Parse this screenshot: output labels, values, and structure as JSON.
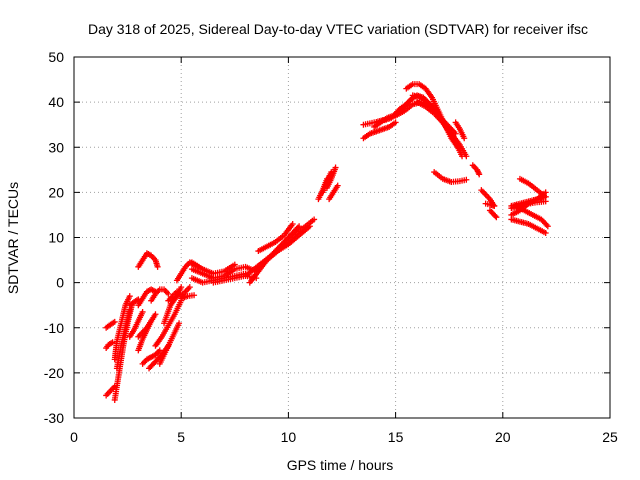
{
  "chart_data": {
    "type": "scatter",
    "title": "Day 318 of 2025, Sidereal Day-to-day VTEC variation (SDTVAR) for receiver ifsc",
    "xlabel": "GPS time / hours",
    "ylabel": "SDTVAR / TECUs",
    "xlim": [
      0,
      25
    ],
    "ylim": [
      -30,
      50
    ],
    "xticks": [
      "0",
      "5",
      "10",
      "15",
      "20",
      "25"
    ],
    "yticks": [
      "-30",
      "-20",
      "-10",
      "0",
      "10",
      "20",
      "30",
      "40",
      "50"
    ],
    "grid": true,
    "marker": "+",
    "series": [
      {
        "name": "SDTVAR",
        "color": "#ff0000",
        "segments": [
          {
            "x": [
              1.5,
              1.7,
              1.9
            ],
            "y": [
              -25,
              -24,
              -23
            ]
          },
          {
            "x": [
              1.5,
              1.6,
              1.8
            ],
            "y": [
              -14.5,
              -13.8,
              -13.2
            ]
          },
          {
            "x": [
              1.5,
              1.7,
              1.9
            ],
            "y": [
              -10,
              -9.3,
              -8.7
            ]
          },
          {
            "x": [
              1.9,
              2.1,
              2.3,
              2.5,
              2.7
            ],
            "y": [
              -26,
              -20,
              -14,
              -9,
              -5
            ]
          },
          {
            "x": [
              1.9,
              2.0,
              2.2,
              2.4,
              2.6
            ],
            "y": [
              -17,
              -13,
              -9,
              -5,
              -3
            ]
          },
          {
            "x": [
              2.0,
              2.2,
              2.4,
              2.6
            ],
            "y": [
              -19,
              -14,
              -10,
              -6
            ]
          },
          {
            "x": [
              2.6,
              2.8,
              3.0
            ],
            "y": [
              -5,
              -4.3,
              -3.7
            ]
          },
          {
            "x": [
              2.6,
              2.8,
              3.0,
              3.2
            ],
            "y": [
              -12,
              -10.5,
              -8.5,
              -6.5
            ]
          },
          {
            "x": [
              3.0,
              3.2,
              3.4,
              3.6
            ],
            "y": [
              -15,
              -12.5,
              -10.5,
              -8.5
            ]
          },
          {
            "x": [
              3.0,
              3.2,
              3.4,
              3.6,
              3.8
            ],
            "y": [
              -5,
              -3.5,
              -2,
              -1.5,
              -2
            ]
          },
          {
            "x": [
              3.0,
              3.2,
              3.4,
              3.6,
              3.8
            ],
            "y": [
              -12,
              -11,
              -10,
              -8.5,
              -7
            ]
          },
          {
            "x": [
              3.0,
              3.2,
              3.4,
              3.6,
              3.8,
              3.9
            ],
            "y": [
              3.5,
              5,
              6.5,
              6,
              5,
              3.5
            ]
          },
          {
            "x": [
              3.2,
              3.4,
              3.6,
              3.8,
              4.0
            ],
            "y": [
              -18,
              -17,
              -16.5,
              -16,
              -15
            ]
          },
          {
            "x": [
              3.5,
              3.8,
              4.1,
              4.4
            ],
            "y": [
              -19,
              -17.5,
              -16,
              -14
            ]
          },
          {
            "x": [
              3.6,
              3.8,
              4.0,
              4.2,
              4.4
            ],
            "y": [
              -4,
              -2.5,
              -1.5,
              -1.5,
              -2.5
            ]
          },
          {
            "x": [
              3.8,
              4.1,
              4.4,
              4.7,
              5.0
            ],
            "y": [
              -14,
              -12,
              -9.5,
              -7,
              -4
            ]
          },
          {
            "x": [
              4.0,
              4.3,
              4.6,
              4.9
            ],
            "y": [
              -18,
              -15,
              -12,
              -9
            ]
          },
          {
            "x": [
              4.2,
              4.5,
              4.8,
              5.0
            ],
            "y": [
              -9,
              -5,
              -3,
              -1
            ]
          },
          {
            "x": [
              4.4,
              4.6,
              4.8,
              5.0,
              5.2,
              5.4
            ],
            "y": [
              -4,
              -3,
              -2,
              -3,
              -2,
              -1
            ]
          },
          {
            "x": [
              4.8,
              5.0,
              5.2,
              5.4,
              5.6,
              5.8
            ],
            "y": [
              0.5,
              2,
              3.5,
              4.5,
              4,
              3.5
            ]
          },
          {
            "x": [
              5.0,
              5.3,
              5.6
            ],
            "y": [
              -3.5,
              -3.0,
              -2.8
            ]
          },
          {
            "x": [
              5.5,
              6.0,
              6.5,
              7.0,
              7.5,
              8.0,
              8.5
            ],
            "y": [
              3,
              2,
              1,
              1.5,
              3,
              3.5,
              2.5
            ]
          },
          {
            "x": [
              5.5,
              6.0,
              6.5,
              7.0,
              7.5,
              8.0
            ],
            "y": [
              1,
              0,
              0.5,
              1,
              1.5,
              2
            ]
          },
          {
            "x": [
              5.5,
              6.0,
              6.5,
              7.0,
              7.5
            ],
            "y": [
              4.5,
              3,
              2,
              2.5,
              4
            ]
          },
          {
            "x": [
              6.5,
              7.0,
              7.5,
              8.0,
              8.5
            ],
            "y": [
              0,
              0.5,
              1,
              1.5,
              1
            ]
          },
          {
            "x": [
              8.2,
              8.6,
              9.0,
              9.5,
              10.0,
              10.5
            ],
            "y": [
              0,
              2.5,
              5,
              7.5,
              10,
              12.5
            ]
          },
          {
            "x": [
              8.5,
              9.0,
              9.5,
              10.0,
              10.5,
              11.0
            ],
            "y": [
              3,
              5,
              7,
              8.5,
              10.5,
              12.5
            ]
          },
          {
            "x": [
              8.0,
              8.4,
              8.8,
              9.2,
              9.6,
              10.0,
              10.4,
              10.8,
              11.2
            ],
            "y": [
              1.5,
              3,
              4.5,
              6,
              7.5,
              9,
              11,
              12.5,
              14
            ]
          },
          {
            "x": [
              8.6,
              9.0,
              9.4,
              9.8,
              10.2
            ],
            "y": [
              7,
              8,
              9,
              10.5,
              13
            ]
          },
          {
            "x": [
              11.4,
              11.6,
              11.8
            ],
            "y": [
              18.5,
              20.5,
              23
            ]
          },
          {
            "x": [
              11.6,
              11.8,
              12.0
            ],
            "y": [
              20,
              22.5,
              24.5
            ]
          },
          {
            "x": [
              11.8,
              12.0,
              12.2
            ],
            "y": [
              21,
              23,
              25.5
            ]
          },
          {
            "x": [
              11.9,
              12.1,
              12.3
            ],
            "y": [
              18.5,
              20,
              21.5
            ]
          },
          {
            "x": [
              13.5,
              13.8,
              14.1,
              14.4,
              14.7,
              15.0
            ],
            "y": [
              32,
              33,
              33.5,
              34,
              34.5,
              35.5
            ]
          },
          {
            "x": [
              13.5,
              13.8,
              14.1,
              14.4
            ],
            "y": [
              35,
              35.3,
              35.6,
              36
            ]
          },
          {
            "x": [
              14.0,
              14.3,
              14.6,
              14.9,
              15.2,
              15.5,
              15.8
            ],
            "y": [
              34.5,
              35.5,
              36.5,
              37,
              38.5,
              39.5,
              41
            ]
          },
          {
            "x": [
              14.5,
              14.8,
              15.1,
              15.4,
              15.7,
              16.0,
              16.3,
              16.6,
              17.0
            ],
            "y": [
              36,
              36.5,
              37.5,
              39,
              40.5,
              41.5,
              41,
              39.5,
              38
            ]
          },
          {
            "x": [
              15.0,
              15.4,
              15.8,
              16.2,
              16.6,
              17.0,
              17.4,
              17.8
            ],
            "y": [
              37,
              38,
              39.5,
              40,
              39,
              37,
              35,
              33
            ]
          },
          {
            "x": [
              15.5,
              15.8,
              16.1,
              16.4,
              16.7,
              17.0,
              17.3,
              17.6,
              17.9
            ],
            "y": [
              43,
              44,
              44,
              43,
              41,
              38,
              35,
              32,
              30
            ]
          },
          {
            "x": [
              15.8,
              16.2,
              16.6,
              17.0,
              17.4,
              17.8,
              18.1
            ],
            "y": [
              41.5,
              41,
              39.5,
              37,
              34,
              31,
              28
            ]
          },
          {
            "x": [
              16.0,
              16.4,
              16.8,
              17.2,
              17.6,
              18.0,
              18.3
            ],
            "y": [
              40,
              39,
              37.5,
              35.5,
              33,
              30.5,
              28
            ]
          },
          {
            "x": [
              17.8,
              18.0,
              18.2
            ],
            "y": [
              35.5,
              34,
              32
            ]
          },
          {
            "x": [
              16.8,
              17.2,
              17.6,
              18.0,
              18.3
            ],
            "y": [
              24.5,
              23,
              22.3,
              22.5,
              22.8
            ]
          },
          {
            "x": [
              18.6,
              18.8,
              18.9
            ],
            "y": [
              26,
              25,
              24
            ]
          },
          {
            "x": [
              19.0,
              19.2,
              19.4,
              19.6
            ],
            "y": [
              20.5,
              19.5,
              18.5,
              17
            ]
          },
          {
            "x": [
              19.2,
              19.4,
              19.6
            ],
            "y": [
              17.5,
              17.3,
              17
            ]
          },
          {
            "x": [
              19.4,
              19.6,
              19.7
            ],
            "y": [
              16,
              15,
              14.5
            ]
          },
          {
            "x": [
              20.4,
              20.8,
              21.2,
              21.6,
              22.0
            ],
            "y": [
              14,
              13.5,
              13,
              12,
              11
            ]
          },
          {
            "x": [
              20.4,
              20.8,
              21.2,
              21.6,
              22.0
            ],
            "y": [
              17,
              17.5,
              18,
              18.5,
              19
            ]
          },
          {
            "x": [
              20.4,
              20.8,
              21.2,
              21.6,
              22.0
            ],
            "y": [
              15,
              16,
              17.5,
              18.5,
              20
            ]
          },
          {
            "x": [
              20.6,
              21.0,
              21.4,
              21.8,
              22.1
            ],
            "y": [
              17,
              16,
              15,
              14,
              12.5
            ]
          },
          {
            "x": [
              20.8,
              21.2,
              21.6,
              22.0
            ],
            "y": [
              23,
              22,
              20.5,
              19
            ]
          },
          {
            "x": [
              20.4,
              20.8,
              21.2,
              21.6,
              22.0
            ],
            "y": [
              16.5,
              17,
              17.5,
              17.8,
              18
            ]
          }
        ]
      }
    ]
  }
}
